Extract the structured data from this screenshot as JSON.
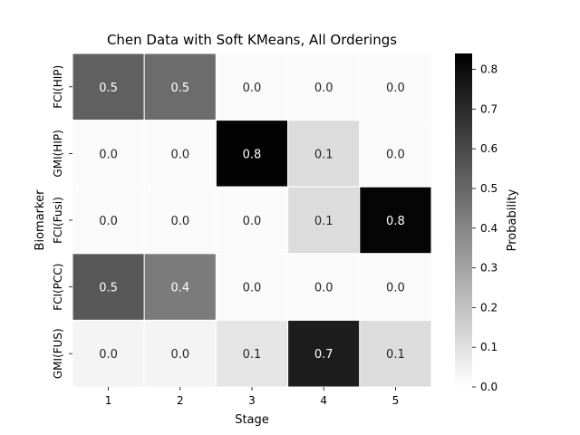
{
  "chart_data": {
    "type": "heatmap",
    "title": "Chen Data with Soft KMeans, All Orderings",
    "xlabel": "Stage",
    "ylabel": "Biomarker",
    "x": [
      "1",
      "2",
      "3",
      "4",
      "5"
    ],
    "y": [
      "FCI(HIP)",
      "GMI(HIP)",
      "FCI(Fusi)",
      "FCI(PCC)",
      "GMI(FUS)"
    ],
    "values": [
      [
        0.52,
        0.48,
        0.0,
        0.0,
        0.0
      ],
      [
        0.0,
        0.0,
        0.84,
        0.1,
        0.0
      ],
      [
        0.0,
        0.0,
        0.0,
        0.1,
        0.83
      ],
      [
        0.55,
        0.43,
        0.0,
        0.0,
        0.0
      ],
      [
        0.02,
        0.02,
        0.07,
        0.75,
        0.1
      ]
    ],
    "labels": [
      [
        "0.5",
        "0.5",
        "0.0",
        "0.0",
        "0.0"
      ],
      [
        "0.0",
        "0.0",
        "0.8",
        "0.1",
        "0.0"
      ],
      [
        "0.0",
        "0.0",
        "0.0",
        "0.1",
        "0.8"
      ],
      [
        "0.5",
        "0.4",
        "0.0",
        "0.0",
        "0.0"
      ],
      [
        "0.0",
        "0.0",
        "0.1",
        "0.7",
        "0.1"
      ]
    ],
    "colorbar": {
      "label": "Probability",
      "min": 0.0,
      "max": 0.84,
      "ticks": [
        "0.0",
        "0.1",
        "0.2",
        "0.3",
        "0.4",
        "0.5",
        "0.6",
        "0.7",
        "0.8"
      ],
      "colormap": "white-to-black"
    },
    "grid": false
  }
}
